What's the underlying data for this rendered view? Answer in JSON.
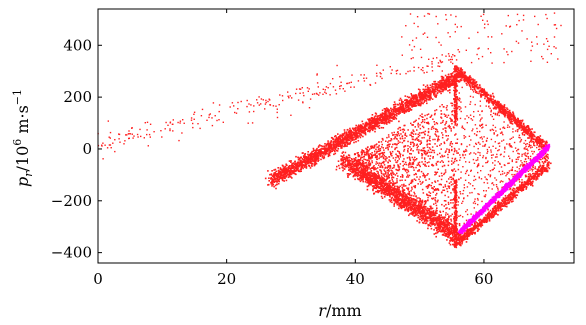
{
  "chart_data": {
    "type": "scatter",
    "title": "",
    "xlabel": {
      "var": "r",
      "unit": "/mm"
    },
    "ylabel": {
      "var": "p",
      "sub": "r",
      "unit": "/10",
      "exp": "6",
      "unit2": " m·s",
      "exp2": "−1"
    },
    "xlim": [
      0,
      74
    ],
    "ylim": [
      -440,
      540
    ],
    "xticks": [
      0,
      20,
      40,
      60
    ],
    "xtick_labels": [
      "0",
      "20",
      "40",
      "60"
    ],
    "yticks": [
      -400,
      -200,
      0,
      200,
      400
    ],
    "ytick_labels": [
      "−400",
      "−200",
      "0",
      "200",
      "400"
    ],
    "grid": false,
    "legend": "none",
    "colors": {
      "red_particles": "#ff2020",
      "magenta_particles": "#ff00ff",
      "axis": "#000000"
    },
    "series": [
      {
        "color": "#ff2020",
        "description_points": [
          [
            1,
            20
          ],
          [
            5,
            40
          ],
          [
            10,
            70
          ],
          [
            15,
            100
          ],
          [
            20,
            130
          ],
          [
            25,
            170
          ],
          [
            30,
            210
          ],
          [
            35,
            250
          ],
          [
            40,
            300
          ],
          [
            45,
            340
          ],
          [
            48,
            380
          ],
          [
            52,
            420
          ],
          [
            55,
            460
          ],
          [
            60,
            500
          ],
          [
            65,
            480
          ],
          [
            70,
            520
          ],
          [
            27,
            -120
          ],
          [
            30,
            -110
          ],
          [
            35,
            -80
          ],
          [
            40,
            0
          ],
          [
            45,
            100
          ],
          [
            50,
            180
          ],
          [
            55,
            280
          ],
          [
            40,
            -100
          ],
          [
            45,
            -150
          ],
          [
            50,
            -200
          ],
          [
            55,
            -320
          ],
          [
            56,
            300
          ],
          [
            58,
            200
          ],
          [
            62,
            50
          ],
          [
            66,
            -50
          ],
          [
            70,
            0
          ],
          [
            56,
            -350
          ],
          [
            58,
            -300
          ],
          [
            62,
            -200
          ]
        ]
      },
      {
        "color": "#ff00ff",
        "description_points": [
          [
            56,
            -330
          ],
          [
            60,
            -250
          ],
          [
            64,
            -160
          ],
          [
            68,
            -60
          ],
          [
            70,
            -10
          ]
        ]
      }
    ]
  }
}
